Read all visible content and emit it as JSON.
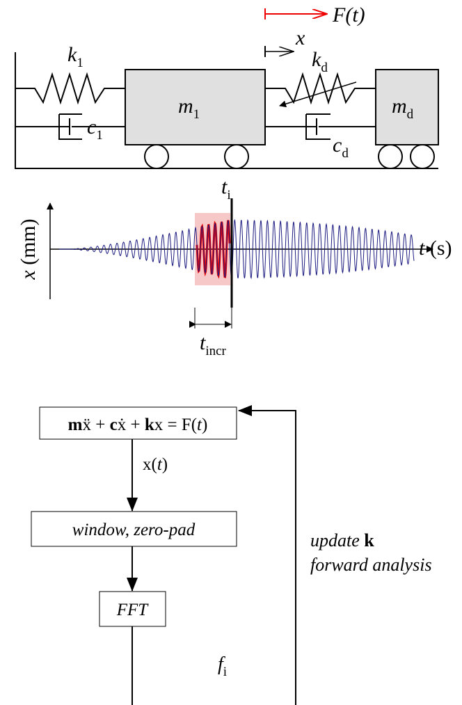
{
  "system": {
    "force": "F(t)",
    "displacement": "x",
    "mass_1": {
      "symbol": "m",
      "sub": "1"
    },
    "spring_1": {
      "symbol": "k",
      "sub": "1"
    },
    "damper_1": {
      "symbol": "c",
      "sub": "1"
    },
    "mass_d": {
      "symbol": "m",
      "sub": "d"
    },
    "spring_d": {
      "symbol": "k",
      "sub": "d"
    },
    "damper_d": {
      "symbol": "c",
      "sub": "d"
    }
  },
  "plot": {
    "y_axis_label": [
      "x",
      " (mm)"
    ],
    "x_axis_label": [
      "t",
      " (s)"
    ],
    "time_marker": {
      "symbol": "t",
      "sub": "i"
    },
    "increment": {
      "symbol": "t",
      "sub": "incr"
    }
  },
  "flowchart": {
    "equation": [
      "m",
      "ẍ + ",
      "c",
      "ẋ + ",
      "k",
      "x = F(",
      "t",
      ")"
    ],
    "signal": [
      "x(",
      "t",
      ")"
    ],
    "window": "window, zero-pad",
    "fft": "FFT",
    "frequency": {
      "symbol": "f",
      "sub": "i"
    },
    "feedback": [
      "update ",
      "k",
      "forward analysis"
    ]
  }
}
